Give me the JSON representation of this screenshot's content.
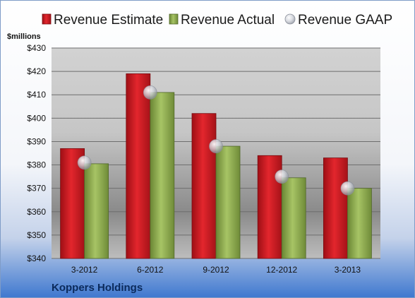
{
  "chart_data": {
    "type": "bar",
    "y_unit_label": "$millions",
    "footer_label": "Koppers Holdings",
    "categories": [
      "3-2012",
      "6-2012",
      "9-2012",
      "12-2012",
      "3-2013"
    ],
    "ylim": [
      340,
      430
    ],
    "yticks": [
      340,
      350,
      360,
      370,
      380,
      390,
      400,
      410,
      420,
      430
    ],
    "ytick_labels": [
      "$340",
      "$350",
      "$360",
      "$370",
      "$380",
      "$390",
      "$400",
      "$410",
      "$420",
      "$430"
    ],
    "grid": true,
    "legend_position": "top",
    "series": [
      {
        "name": "Revenue Estimate",
        "kind": "bar",
        "color": "#c8141c",
        "values": [
          387,
          419,
          402,
          384,
          383
        ]
      },
      {
        "name": "Revenue Actual",
        "kind": "bar",
        "color": "#8fae4e",
        "values": [
          380.5,
          411,
          388,
          374.5,
          370
        ]
      },
      {
        "name": "Revenue GAAP",
        "kind": "marker",
        "color": "#c9ccd4",
        "values": [
          381,
          411,
          388,
          375,
          370
        ]
      }
    ]
  }
}
